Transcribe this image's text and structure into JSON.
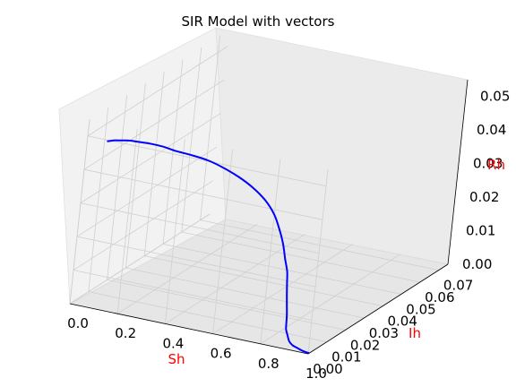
{
  "chart_data": {
    "type": "line",
    "title": "SIR Model with vectors",
    "projection": "3d",
    "xlabel": "Sh",
    "ylabel": "Ih",
    "zlabel": "Rh",
    "xlim": [
      0.0,
      1.0
    ],
    "ylim": [
      0.0,
      0.075
    ],
    "zlim": [
      0.0,
      0.055
    ],
    "x_ticks": [
      "0.0",
      "0.2",
      "0.4",
      "0.6",
      "0.8",
      "1.0"
    ],
    "y_ticks": [
      "0.00",
      "0.01",
      "0.02",
      "0.03",
      "0.04",
      "0.05",
      "0.06",
      "0.07"
    ],
    "z_ticks": [
      "0.00",
      "0.01",
      "0.02",
      "0.03",
      "0.04",
      "0.05"
    ],
    "grid": true,
    "colors": {
      "line": "#0000ff",
      "axis_label": "#ff0000",
      "pane": "#f2f2f2",
      "grid": "#cfcfcf"
    },
    "series": [
      {
        "color": "#0000ff",
        "x": [
          1.0,
          0.97,
          0.94,
          0.91,
          0.88,
          0.85,
          0.82,
          0.79,
          0.76,
          0.72,
          0.68,
          0.64,
          0.6,
          0.55,
          0.5,
          0.45,
          0.4,
          0.35,
          0.3,
          0.26,
          0.22,
          0.19,
          0.16,
          0.14,
          0.12,
          0.1,
          0.09,
          0.08,
          0.07,
          0.065,
          0.06
        ],
        "y": [
          0.0005,
          0.001,
          0.002,
          0.003,
          0.005,
          0.008,
          0.011,
          0.015,
          0.019,
          0.024,
          0.029,
          0.034,
          0.039,
          0.044,
          0.049,
          0.053,
          0.056,
          0.057,
          0.056,
          0.053,
          0.049,
          0.044,
          0.038,
          0.032,
          0.027,
          0.022,
          0.017,
          0.013,
          0.009,
          0.006,
          0.003
        ],
        "z": [
          0.0,
          5e-05,
          0.0001,
          0.00018,
          0.0003,
          0.0005,
          0.0007,
          0.001,
          0.0014,
          0.0019,
          0.0026,
          0.0035,
          0.0046,
          0.006,
          0.0078,
          0.01,
          0.0127,
          0.0158,
          0.0192,
          0.0228,
          0.0264,
          0.0299,
          0.0332,
          0.0362,
          0.039,
          0.0414,
          0.0435,
          0.0452,
          0.0465,
          0.0475,
          0.0482
        ]
      }
    ]
  }
}
